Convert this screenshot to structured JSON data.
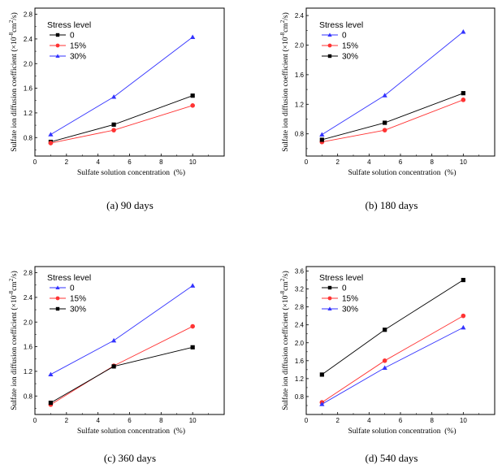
{
  "chart_data": [
    {
      "type": "line",
      "caption": "(a) 90 days",
      "xlabel": "Sulfate solution concentration  (%)",
      "ylabel_main": "Sulfate ion diffusion coefficient (×10",
      "ylabel_exp1": "-8",
      "ylabel_mid": "cm",
      "ylabel_exp2": "2",
      "ylabel_end": "/s)",
      "xlim": [
        0,
        12
      ],
      "ylim": [
        0.5,
        2.9
      ],
      "xticks": [
        0,
        2,
        4,
        6,
        8,
        10
      ],
      "yticks": [
        0.8,
        1.2,
        1.6,
        2.0,
        2.4,
        2.8
      ],
      "legend_title": "Stress level",
      "x": [
        1,
        5,
        10
      ],
      "series": [
        {
          "name": "0",
          "color": "#000000",
          "marker": "square",
          "values": [
            0.73,
            1.01,
            1.48
          ]
        },
        {
          "name": "15%",
          "color": "#ff3333",
          "marker": "circle",
          "values": [
            0.71,
            0.92,
            1.32
          ]
        },
        {
          "name": "30%",
          "color": "#3333ff",
          "marker": "triangle",
          "values": [
            0.85,
            1.46,
            2.43
          ]
        }
      ]
    },
    {
      "type": "line",
      "caption": "(b) 180 days",
      "xlabel": "Sulfate solution concentration  (%)",
      "ylabel_main": "Sulfate ion diffusion coefficient (×10",
      "ylabel_exp1": "-8",
      "ylabel_mid": "cm",
      "ylabel_exp2": "2",
      "ylabel_end": "/s)",
      "xlim": [
        0,
        12
      ],
      "ylim": [
        0.5,
        2.5
      ],
      "xticks": [
        0,
        2,
        4,
        6,
        8,
        10
      ],
      "yticks": [
        0.8,
        1.2,
        1.6,
        2.0,
        2.4
      ],
      "legend_title": "Stress level",
      "x": [
        1,
        5,
        10
      ],
      "series": [
        {
          "name": "0",
          "color": "#3333ff",
          "marker": "triangle",
          "values": [
            0.79,
            1.32,
            2.18
          ]
        },
        {
          "name": "15%",
          "color": "#ff3333",
          "marker": "circle",
          "values": [
            0.69,
            0.85,
            1.26
          ]
        },
        {
          "name": "30%",
          "color": "#000000",
          "marker": "square",
          "values": [
            0.72,
            0.95,
            1.35
          ]
        }
      ]
    },
    {
      "type": "line",
      "caption": "(c) 360 days",
      "xlabel": "Sulfate solution concentration  (%)",
      "ylabel_main": "Sulfate ion diffusion coefficient (×10",
      "ylabel_exp1": "-8",
      "ylabel_mid": "cm",
      "ylabel_exp2": "2",
      "ylabel_end": "/s)",
      "xlim": [
        0,
        12
      ],
      "ylim": [
        0.5,
        2.9
      ],
      "xticks": [
        0,
        2,
        4,
        6,
        8,
        10
      ],
      "yticks": [
        0.8,
        1.2,
        1.6,
        2.0,
        2.4,
        2.8
      ],
      "legend_title": "Stress level",
      "x": [
        1,
        5,
        10
      ],
      "series": [
        {
          "name": "0",
          "color": "#3333ff",
          "marker": "triangle",
          "values": [
            1.15,
            1.7,
            2.59
          ]
        },
        {
          "name": "15%",
          "color": "#ff3333",
          "marker": "circle",
          "values": [
            0.66,
            1.29,
            1.93
          ]
        },
        {
          "name": "30%",
          "color": "#000000",
          "marker": "square",
          "values": [
            0.69,
            1.28,
            1.59
          ]
        }
      ]
    },
    {
      "type": "line",
      "caption": "(d) 540 days",
      "xlabel": "Sulfate solution concentration  (%)",
      "ylabel_main": "Sulfate ion diffusion coefficient (×10",
      "ylabel_exp1": "-8",
      "ylabel_mid": "cm",
      "ylabel_exp2": "2",
      "ylabel_end": "/s)",
      "xlim": [
        0,
        12
      ],
      "ylim": [
        0.4,
        3.7
      ],
      "xticks": [
        0,
        2,
        4,
        6,
        8,
        10
      ],
      "yticks": [
        0.8,
        1.2,
        1.6,
        2.0,
        2.4,
        2.8,
        3.2,
        3.6
      ],
      "legend_title": "Stress level",
      "x": [
        1,
        5,
        10
      ],
      "series": [
        {
          "name": "0",
          "color": "#000000",
          "marker": "square",
          "values": [
            1.29,
            2.29,
            3.4
          ]
        },
        {
          "name": "15%",
          "color": "#ff3333",
          "marker": "circle",
          "values": [
            0.67,
            1.6,
            2.6
          ]
        },
        {
          "name": "30%",
          "color": "#3333ff",
          "marker": "triangle",
          "values": [
            0.63,
            1.44,
            2.34
          ]
        }
      ]
    }
  ]
}
